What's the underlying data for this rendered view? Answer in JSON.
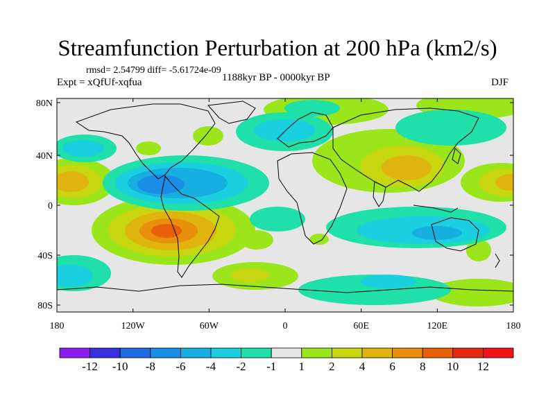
{
  "title": "Streamfunction Perturbation at 200 hPa (km2/s)",
  "stats_text": "rmsd= 2.54799  diff= -5.61724e-09",
  "experiment_text": "Expt = xQfUf-xqfua",
  "period_text": "1188kyr BP - 0000kyr BP",
  "season_text": "DJF",
  "axes": {
    "lon_ticks": [
      "180",
      "120W",
      "60W",
      "0",
      "60E",
      "120E",
      "180"
    ],
    "lat_ticks": [
      "80N",
      "40N",
      "0",
      "40S",
      "80S"
    ]
  },
  "colorbar": {
    "labels": [
      "-12",
      "-10",
      "-8",
      "-6",
      "-4",
      "-2",
      "-1",
      "1",
      "2",
      "4",
      "6",
      "8",
      "10",
      "12"
    ],
    "colors": [
      "#8c1df0",
      "#3a2fe0",
      "#1f6be0",
      "#1a8ee6",
      "#17aee0",
      "#19cfe0",
      "#1ee0a8",
      "#e6e6e6",
      "#9be61a",
      "#c8d612",
      "#e0b40e",
      "#e8900c",
      "#e8600a",
      "#e62a10",
      "#f0141a"
    ]
  },
  "colors": {
    "ocean_neutral": "#e6e6e6",
    "coastline": "#000000"
  }
}
